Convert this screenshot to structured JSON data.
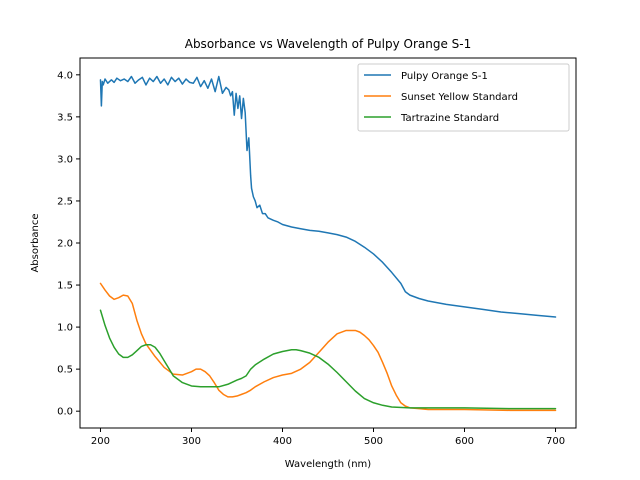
{
  "chart_data": {
    "type": "line",
    "title": "Absorbance vs Wavelength of Pulpy Orange S-1",
    "xlabel": "Wavelength (nm)",
    "ylabel": "Absorbance",
    "xlim": [
      177.5,
      722.5
    ],
    "ylim": [
      -0.2,
      4.2
    ],
    "xticks": [
      200,
      300,
      400,
      500,
      600,
      700
    ],
    "yticks": [
      0.0,
      0.5,
      1.0,
      1.5,
      2.0,
      2.5,
      3.0,
      3.5,
      4.0
    ],
    "grid": false,
    "legend_position": "top-right",
    "series": [
      {
        "name": "Pulpy Orange S-1",
        "color": "#1f77b4",
        "x": [
          200,
          201,
          202,
          203,
          205,
          208,
          212,
          215,
          218,
          222,
          226,
          230,
          234,
          238,
          242,
          246,
          250,
          254,
          258,
          262,
          266,
          270,
          274,
          278,
          282,
          286,
          290,
          294,
          298,
          302,
          306,
          310,
          314,
          318,
          322,
          326,
          330,
          334,
          338,
          341,
          343,
          345,
          347,
          349,
          351,
          353,
          355,
          357,
          359,
          361,
          363,
          365,
          366,
          368,
          370,
          372,
          375,
          378,
          381,
          384,
          390,
          395,
          400,
          410,
          420,
          430,
          440,
          450,
          460,
          470,
          480,
          490,
          500,
          510,
          520,
          530,
          535,
          540,
          550,
          560,
          580,
          600,
          620,
          640,
          660,
          680,
          700
        ],
        "y": [
          3.94,
          3.63,
          3.92,
          3.88,
          3.95,
          3.9,
          3.94,
          3.91,
          3.96,
          3.93,
          3.95,
          3.92,
          3.98,
          3.9,
          3.94,
          3.97,
          3.88,
          3.96,
          3.92,
          3.98,
          3.9,
          3.95,
          3.88,
          3.97,
          3.92,
          3.96,
          3.89,
          3.95,
          3.91,
          3.9,
          3.97,
          3.86,
          3.93,
          3.84,
          3.95,
          3.8,
          3.98,
          3.78,
          3.85,
          3.82,
          3.75,
          3.8,
          3.52,
          3.78,
          3.6,
          3.75,
          3.48,
          3.72,
          3.55,
          3.1,
          3.25,
          2.8,
          2.65,
          2.55,
          2.5,
          2.42,
          2.45,
          2.35,
          2.35,
          2.3,
          2.27,
          2.25,
          2.22,
          2.19,
          2.17,
          2.15,
          2.14,
          2.12,
          2.1,
          2.07,
          2.02,
          1.95,
          1.87,
          1.77,
          1.65,
          1.52,
          1.42,
          1.38,
          1.34,
          1.31,
          1.27,
          1.24,
          1.21,
          1.18,
          1.16,
          1.14,
          1.12
        ]
      },
      {
        "name": "Sunset Yellow Standard",
        "color": "#ff7f0e",
        "x": [
          200,
          205,
          210,
          215,
          220,
          225,
          230,
          235,
          240,
          245,
          250,
          260,
          270,
          280,
          290,
          300,
          305,
          310,
          315,
          320,
          325,
          330,
          335,
          340,
          345,
          350,
          355,
          360,
          365,
          370,
          380,
          390,
          400,
          410,
          420,
          430,
          440,
          450,
          460,
          470,
          480,
          485,
          490,
          495,
          500,
          505,
          510,
          515,
          520,
          525,
          530,
          535,
          540,
          550,
          560,
          580,
          600,
          650,
          700
        ],
        "y": [
          1.52,
          1.44,
          1.37,
          1.33,
          1.35,
          1.38,
          1.37,
          1.28,
          1.08,
          0.92,
          0.8,
          0.65,
          0.52,
          0.44,
          0.43,
          0.47,
          0.5,
          0.5,
          0.47,
          0.42,
          0.34,
          0.25,
          0.2,
          0.17,
          0.17,
          0.18,
          0.2,
          0.22,
          0.25,
          0.29,
          0.35,
          0.4,
          0.43,
          0.45,
          0.5,
          0.58,
          0.7,
          0.82,
          0.92,
          0.96,
          0.96,
          0.94,
          0.9,
          0.85,
          0.78,
          0.7,
          0.58,
          0.45,
          0.3,
          0.19,
          0.1,
          0.06,
          0.04,
          0.03,
          0.02,
          0.02,
          0.02,
          0.01,
          0.01
        ]
      },
      {
        "name": "Tartrazine Standard",
        "color": "#2ca02c",
        "x": [
          200,
          205,
          210,
          215,
          220,
          225,
          230,
          235,
          240,
          245,
          250,
          255,
          260,
          265,
          270,
          275,
          280,
          290,
          300,
          310,
          320,
          330,
          340,
          350,
          355,
          360,
          365,
          370,
          380,
          390,
          400,
          410,
          415,
          420,
          430,
          440,
          450,
          460,
          470,
          480,
          490,
          500,
          510,
          520,
          540,
          560,
          600,
          650,
          700
        ],
        "y": [
          1.2,
          1.02,
          0.87,
          0.76,
          0.68,
          0.64,
          0.64,
          0.67,
          0.72,
          0.77,
          0.79,
          0.79,
          0.76,
          0.69,
          0.6,
          0.51,
          0.42,
          0.34,
          0.3,
          0.29,
          0.29,
          0.29,
          0.32,
          0.37,
          0.39,
          0.42,
          0.5,
          0.55,
          0.62,
          0.68,
          0.71,
          0.73,
          0.73,
          0.72,
          0.69,
          0.64,
          0.56,
          0.46,
          0.35,
          0.24,
          0.15,
          0.1,
          0.07,
          0.05,
          0.04,
          0.04,
          0.04,
          0.03,
          0.03
        ]
      }
    ]
  }
}
